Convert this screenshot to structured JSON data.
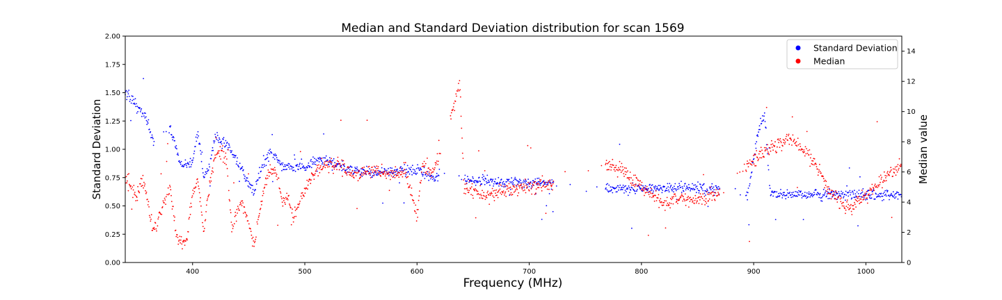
{
  "chart_data": {
    "type": "scatter",
    "title": "Median and Standard Deviation distribution for scan 1569",
    "xlabel": "Frequency (MHz)",
    "ylabel": "Standard Deviation",
    "ylabel_right": "Median value",
    "xlim": [
      340,
      1032
    ],
    "ylim": [
      0,
      2.0
    ],
    "ylim_right": [
      0,
      15
    ],
    "x_ticks": [
      400,
      500,
      600,
      700,
      800,
      900,
      1000
    ],
    "y_ticks": [
      0.0,
      0.25,
      0.5,
      0.75,
      1.0,
      1.25,
      1.5,
      1.75,
      2.0
    ],
    "y_tick_labels": [
      "0.00",
      "0.25",
      "0.50",
      "0.75",
      "1.00",
      "1.25",
      "1.50",
      "1.75",
      "2.00"
    ],
    "y_right_ticks": [
      0,
      2,
      4,
      6,
      8,
      10,
      12,
      14
    ],
    "legend_position": "top-right",
    "grid": false,
    "series": [
      {
        "name": "Standard Deviation",
        "color": "#0000ff",
        "axis": "left",
        "profile": [
          [
            340,
            1.5
          ],
          [
            350,
            1.4
          ],
          [
            356,
            1.3
          ],
          [
            360,
            1.25
          ],
          [
            365,
            1.05
          ],
          [
            380,
            1.2
          ],
          [
            390,
            0.85
          ],
          [
            400,
            0.9
          ],
          [
            405,
            1.15
          ],
          [
            410,
            0.75
          ],
          [
            415,
            0.85
          ],
          [
            420,
            1.1
          ],
          [
            430,
            1.05
          ],
          [
            440,
            0.9
          ],
          [
            450,
            0.7
          ],
          [
            455,
            0.63
          ],
          [
            462,
            0.85
          ],
          [
            470,
            0.98
          ],
          [
            480,
            0.85
          ],
          [
            490,
            0.85
          ],
          [
            500,
            0.84
          ],
          [
            510,
            0.92
          ],
          [
            520,
            0.9
          ],
          [
            530,
            0.85
          ],
          [
            550,
            0.8
          ],
          [
            570,
            0.8
          ],
          [
            600,
            0.82
          ],
          [
            615,
            0.75
          ],
          [
            645,
            0.73
          ],
          [
            700,
            0.7
          ],
          [
            720,
            0.7
          ],
          [
            770,
            0.65
          ],
          [
            840,
            0.66
          ],
          [
            870,
            0.64
          ],
          [
            895,
            0.62
          ],
          [
            905,
            1.2
          ],
          [
            910,
            1.3
          ],
          [
            915,
            0.6
          ],
          [
            1032,
            0.6
          ]
        ],
        "gaps": [
          [
            366,
            379
          ],
          [
            620,
            642
          ],
          [
            722,
            768
          ],
          [
            870,
            893
          ]
        ]
      },
      {
        "name": "Median",
        "color": "#ff0000",
        "axis": "right",
        "profile": [
          [
            340,
            5.5
          ],
          [
            350,
            4.5
          ],
          [
            356,
            5.5
          ],
          [
            360,
            4.0
          ],
          [
            365,
            2.0
          ],
          [
            380,
            5.0
          ],
          [
            385,
            2.0
          ],
          [
            390,
            1.2
          ],
          [
            395,
            1.5
          ],
          [
            400,
            4.5
          ],
          [
            405,
            5.5
          ],
          [
            410,
            2.0
          ],
          [
            415,
            5.0
          ],
          [
            420,
            7.0
          ],
          [
            425,
            7.4
          ],
          [
            430,
            7.0
          ],
          [
            435,
            2.0
          ],
          [
            440,
            3.5
          ],
          [
            445,
            4.0
          ],
          [
            450,
            2.5
          ],
          [
            455,
            1.0
          ],
          [
            460,
            3.5
          ],
          [
            465,
            5.5
          ],
          [
            470,
            6.2
          ],
          [
            475,
            6.0
          ],
          [
            480,
            4.0
          ],
          [
            485,
            4.3
          ],
          [
            490,
            3.0
          ],
          [
            500,
            4.8
          ],
          [
            510,
            6.0
          ],
          [
            520,
            6.5
          ],
          [
            530,
            6.5
          ],
          [
            545,
            5.8
          ],
          [
            560,
            6.2
          ],
          [
            575,
            5.8
          ],
          [
            590,
            6.0
          ],
          [
            600,
            3.0
          ],
          [
            605,
            6.5
          ],
          [
            615,
            6.0
          ],
          [
            635,
            11.0
          ],
          [
            638,
            12.0
          ],
          [
            642,
            4.8
          ],
          [
            660,
            4.5
          ],
          [
            680,
            4.8
          ],
          [
            700,
            5.0
          ],
          [
            720,
            5.2
          ],
          [
            770,
            6.5
          ],
          [
            785,
            6.0
          ],
          [
            800,
            5.0
          ],
          [
            810,
            4.5
          ],
          [
            820,
            3.8
          ],
          [
            830,
            4.2
          ],
          [
            850,
            4.2
          ],
          [
            870,
            4.6
          ],
          [
            895,
            6.5
          ],
          [
            905,
            7.0
          ],
          [
            915,
            7.5
          ],
          [
            930,
            8.2
          ],
          [
            940,
            7.8
          ],
          [
            955,
            6.7
          ],
          [
            965,
            5.0
          ],
          [
            975,
            4.2
          ],
          [
            985,
            3.5
          ],
          [
            1000,
            4.5
          ],
          [
            1015,
            5.5
          ],
          [
            1032,
            6.5
          ]
        ],
        "gaps": [
          [
            620,
            630
          ],
          [
            722,
            768
          ],
          [
            870,
            893
          ]
        ]
      }
    ]
  }
}
